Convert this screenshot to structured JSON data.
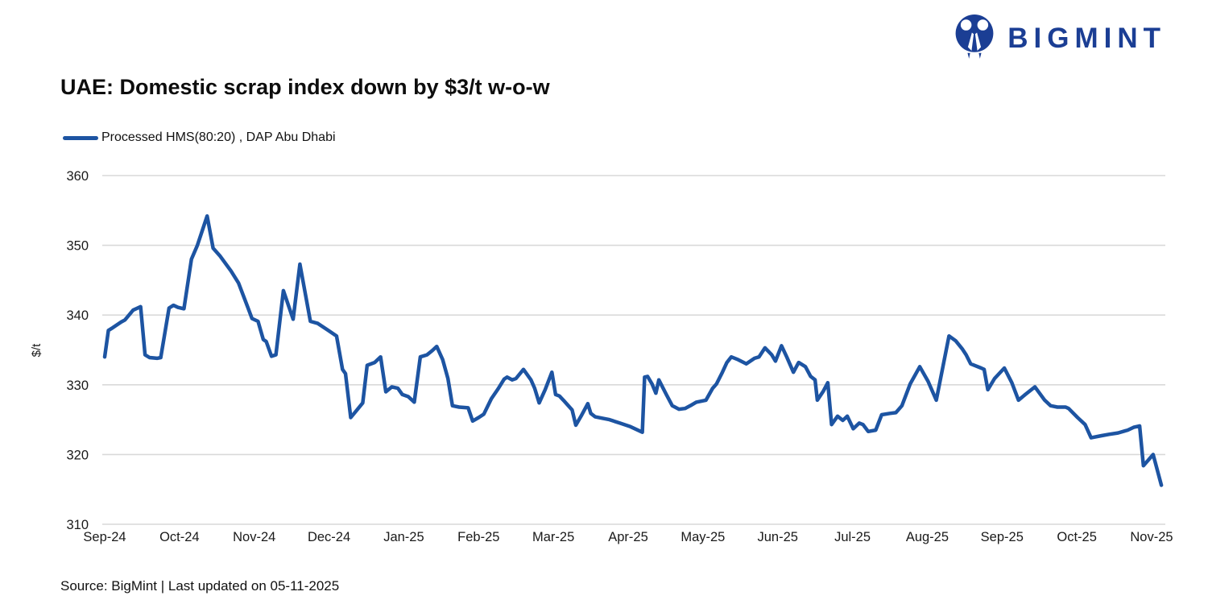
{
  "logo": {
    "text": "BIGMINT",
    "color": "#1b3e94"
  },
  "header": {
    "title": "UAE: Domestic scrap index down by $3/t w-o-w"
  },
  "legend": {
    "label": "Processed HMS(80:20) , DAP Abu Dhabi",
    "color": "#1d54a2"
  },
  "footer": {
    "source": "Source: BigMint | Last updated on 05-11-2025"
  },
  "chart_data": {
    "type": "line",
    "title": "UAE: Domestic scrap index down by $3/t w-o-w",
    "xlabel": "",
    "ylabel": "$/t",
    "ylim": [
      310,
      360
    ],
    "yticks": [
      360,
      350,
      340,
      330,
      320,
      310
    ],
    "x_tick_labels": [
      "Sep-24",
      "Oct-24",
      "Nov-24",
      "Dec-24",
      "Jan-25",
      "Feb-25",
      "Mar-25",
      "Apr-25",
      "May-25",
      "Jun-25",
      "Jul-25",
      "Aug-25",
      "Sep-25",
      "Oct-25",
      "Nov-25"
    ],
    "grid": "horizontal",
    "legend_position": "top-left",
    "line_color": "#1d54a2",
    "grid_color": "#d9d9d9",
    "tick_color": "#1a1a1a",
    "series": [
      {
        "name": "Processed HMS(80:20) , DAP Abu Dhabi",
        "color": "#1d54a2",
        "points": [
          [
            0,
            334
          ],
          [
            0.05,
            337.8
          ],
          [
            0.11,
            338.2
          ],
          [
            0.22,
            339
          ],
          [
            0.27,
            339.3
          ],
          [
            0.38,
            340.7
          ],
          [
            0.48,
            341.2
          ],
          [
            0.54,
            334.3
          ],
          [
            0.6,
            333.9
          ],
          [
            0.7,
            333.8
          ],
          [
            0.75,
            333.9
          ],
          [
            0.86,
            341
          ],
          [
            0.92,
            341.4
          ],
          [
            0.98,
            341.1
          ],
          [
            1.06,
            340.9
          ],
          [
            1.16,
            348
          ],
          [
            1.24,
            350
          ],
          [
            1.37,
            354.2
          ],
          [
            1.45,
            349.6
          ],
          [
            1.54,
            348.5
          ],
          [
            1.69,
            346.3
          ],
          [
            1.79,
            344.6
          ],
          [
            1.91,
            341.2
          ],
          [
            1.97,
            339.5
          ],
          [
            2.05,
            339.1
          ],
          [
            2.12,
            336.5
          ],
          [
            2.16,
            336.2
          ],
          [
            2.23,
            334.1
          ],
          [
            2.29,
            334.3
          ],
          [
            2.39,
            343.5
          ],
          [
            2.52,
            339.4
          ],
          [
            2.61,
            347.3
          ],
          [
            2.75,
            339.1
          ],
          [
            2.85,
            338.8
          ],
          [
            2.99,
            337.8
          ],
          [
            3.1,
            337
          ],
          [
            3.18,
            332.2
          ],
          [
            3.22,
            331.6
          ],
          [
            3.29,
            325.3
          ],
          [
            3.39,
            326.6
          ],
          [
            3.45,
            327.4
          ],
          [
            3.51,
            332.8
          ],
          [
            3.61,
            333.2
          ],
          [
            3.69,
            334
          ],
          [
            3.76,
            329
          ],
          [
            3.84,
            329.7
          ],
          [
            3.92,
            329.5
          ],
          [
            3.98,
            328.6
          ],
          [
            4.06,
            328.3
          ],
          [
            4.14,
            327.5
          ],
          [
            4.22,
            334
          ],
          [
            4.31,
            334.3
          ],
          [
            4.38,
            334.9
          ],
          [
            4.44,
            335.5
          ],
          [
            4.52,
            333.6
          ],
          [
            4.59,
            330.9
          ],
          [
            4.65,
            327
          ],
          [
            4.74,
            326.8
          ],
          [
            4.86,
            326.7
          ],
          [
            4.92,
            324.8
          ],
          [
            5,
            325.3
          ],
          [
            5.07,
            325.8
          ],
          [
            5.17,
            328
          ],
          [
            5.26,
            329.4
          ],
          [
            5.34,
            330.8
          ],
          [
            5.38,
            331.1
          ],
          [
            5.45,
            330.7
          ],
          [
            5.5,
            330.9
          ],
          [
            5.6,
            332.2
          ],
          [
            5.7,
            330.7
          ],
          [
            5.75,
            329.5
          ],
          [
            5.81,
            327.4
          ],
          [
            5.89,
            329.3
          ],
          [
            5.98,
            331.8
          ],
          [
            6.03,
            328.6
          ],
          [
            6.08,
            328.4
          ],
          [
            6.15,
            327.6
          ],
          [
            6.2,
            327
          ],
          [
            6.25,
            326.4
          ],
          [
            6.3,
            324.2
          ],
          [
            6.37,
            325.5
          ],
          [
            6.46,
            327.3
          ],
          [
            6.5,
            325.9
          ],
          [
            6.56,
            325.4
          ],
          [
            6.66,
            325.2
          ],
          [
            6.75,
            325
          ],
          [
            6.89,
            324.5
          ],
          [
            7.03,
            324
          ],
          [
            7.19,
            323.2
          ],
          [
            7.22,
            331.1
          ],
          [
            7.26,
            331.2
          ],
          [
            7.32,
            330.1
          ],
          [
            7.37,
            328.8
          ],
          [
            7.41,
            330.7
          ],
          [
            7.51,
            328.6
          ],
          [
            7.59,
            327
          ],
          [
            7.68,
            326.5
          ],
          [
            7.76,
            326.6
          ],
          [
            7.83,
            327
          ],
          [
            7.91,
            327.5
          ],
          [
            8.04,
            327.8
          ],
          [
            8.13,
            329.5
          ],
          [
            8.18,
            330.1
          ],
          [
            8.26,
            331.8
          ],
          [
            8.32,
            333.2
          ],
          [
            8.38,
            334
          ],
          [
            8.47,
            333.6
          ],
          [
            8.58,
            333
          ],
          [
            8.69,
            333.8
          ],
          [
            8.75,
            334
          ],
          [
            8.83,
            335.3
          ],
          [
            8.92,
            334.3
          ],
          [
            8.97,
            333.4
          ],
          [
            9.05,
            335.6
          ],
          [
            9.12,
            334
          ],
          [
            9.21,
            331.8
          ],
          [
            9.28,
            333.2
          ],
          [
            9.37,
            332.6
          ],
          [
            9.44,
            331.2
          ],
          [
            9.5,
            330.7
          ],
          [
            9.53,
            327.8
          ],
          [
            9.61,
            329.1
          ],
          [
            9.67,
            330.3
          ],
          [
            9.72,
            324.3
          ],
          [
            9.8,
            325.5
          ],
          [
            9.87,
            324.9
          ],
          [
            9.93,
            325.5
          ],
          [
            10.01,
            323.7
          ],
          [
            10.09,
            324.5
          ],
          [
            10.14,
            324.3
          ],
          [
            10.21,
            323.3
          ],
          [
            10.31,
            323.5
          ],
          [
            10.39,
            325.7
          ],
          [
            10.5,
            325.9
          ],
          [
            10.58,
            326
          ],
          [
            10.66,
            327
          ],
          [
            10.77,
            330.1
          ],
          [
            10.9,
            332.6
          ],
          [
            11.01,
            330.5
          ],
          [
            11.12,
            327.8
          ],
          [
            11.29,
            337
          ],
          [
            11.38,
            336.3
          ],
          [
            11.47,
            335.1
          ],
          [
            11.52,
            334.3
          ],
          [
            11.58,
            333
          ],
          [
            11.72,
            332.4
          ],
          [
            11.76,
            332.2
          ],
          [
            11.81,
            329.3
          ],
          [
            11.9,
            330.9
          ],
          [
            12.03,
            332.4
          ],
          [
            12.13,
            330.3
          ],
          [
            12.22,
            327.8
          ],
          [
            12.31,
            328.6
          ],
          [
            12.44,
            329.7
          ],
          [
            12.57,
            327.8
          ],
          [
            12.65,
            327
          ],
          [
            12.74,
            326.8
          ],
          [
            12.85,
            326.8
          ],
          [
            12.89,
            326.6
          ],
          [
            13.01,
            325.3
          ],
          [
            13.11,
            324.3
          ],
          [
            13.19,
            322.4
          ],
          [
            13.33,
            322.7
          ],
          [
            13.43,
            322.9
          ],
          [
            13.55,
            323.1
          ],
          [
            13.68,
            323.5
          ],
          [
            13.76,
            323.9
          ],
          [
            13.84,
            324.1
          ],
          [
            13.89,
            318.4
          ],
          [
            14.02,
            320
          ],
          [
            14.13,
            315.6
          ]
        ]
      }
    ]
  }
}
